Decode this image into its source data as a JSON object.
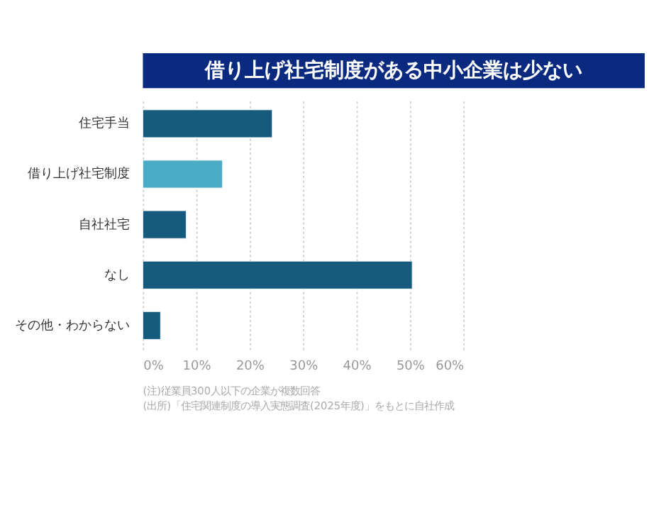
{
  "chart_data": {
    "type": "bar",
    "orientation": "horizontal",
    "title": "借り上げ社宅制度がある中小企業は少ない",
    "categories": [
      "住宅手当",
      "借り上げ社宅制度",
      "自社社宅",
      "なし",
      "その他・わからない"
    ],
    "values": [
      24.2,
      14.9,
      8.1,
      50.4,
      3.3
    ],
    "colors": [
      "#165b7e",
      "#4aabc6",
      "#165b7e",
      "#165b7e",
      "#165b7e"
    ],
    "xlim": [
      0,
      60
    ],
    "xticks": [
      {
        "value": 0,
        "label": "0%"
      },
      {
        "value": 10,
        "label": "10%"
      },
      {
        "value": 20,
        "label": "20%"
      },
      {
        "value": 30,
        "label": "30%"
      },
      {
        "value": 40,
        "label": "40%"
      },
      {
        "value": 50,
        "label": "50%"
      },
      {
        "value": 60,
        "label": "60%"
      }
    ],
    "grid": "x",
    "legend": false,
    "annotations": [
      "(注)従業員300人以下の企業が複数回答",
      "(出所)「住宅関連制度の導入実態調査(2025年度)」をもとに自社作成"
    ]
  }
}
